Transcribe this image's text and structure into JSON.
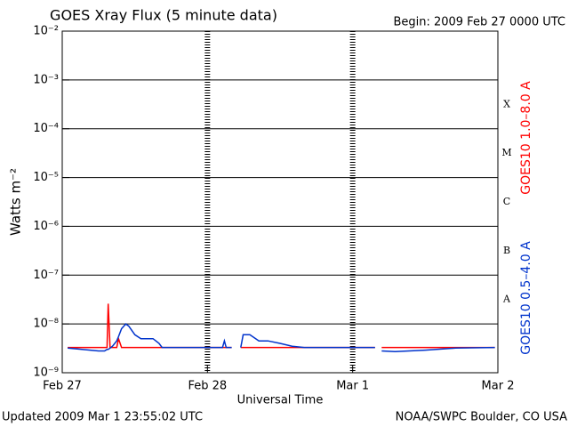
{
  "chart_data": {
    "type": "line",
    "title": "GOES Xray Flux (5 minute data)",
    "subtitle": "Begin:  2009 Feb 27 0000 UTC",
    "x_label": "Universal Time",
    "y_label": "Watts m⁻²",
    "footer_left": "Updated 2009 Mar  1 23:55:02 UTC",
    "footer_right": "NOAA/SWPC Boulder, CO USA",
    "log_scale": true,
    "grid": true,
    "legend": "right",
    "flare_classes": [
      "X",
      "M",
      "C",
      "B",
      "A"
    ],
    "xlim": [
      0,
      72
    ],
    "xticks": [
      {
        "value": 0,
        "label": "Feb 27"
      },
      {
        "value": 24,
        "label": "Feb 28"
      },
      {
        "value": 48,
        "label": "Mar 1"
      },
      {
        "value": 72,
        "label": "Mar 2"
      }
    ],
    "ylim": [
      1e-09,
      0.01
    ],
    "yticks": [
      {
        "value": 1e-09,
        "label": "10⁻⁹"
      },
      {
        "value": 1e-08,
        "label": "10⁻⁸"
      },
      {
        "value": 1e-07,
        "label": "10⁻⁷"
      },
      {
        "value": 1e-06,
        "label": "10⁻⁶"
      },
      {
        "value": 1e-05,
        "label": "10⁻⁵"
      },
      {
        "value": 0.0001,
        "label": "10⁻⁴"
      },
      {
        "value": 0.001,
        "label": "10⁻³"
      },
      {
        "value": 0.01,
        "label": "10⁻²"
      }
    ],
    "x": [
      0.9,
      6.0,
      7.0,
      7.4,
      7.6,
      7.9,
      8.3,
      9.0,
      9.3,
      9.8,
      10.5,
      11.0,
      12.0,
      13.0,
      15.0,
      16.0,
      16.5,
      17.5,
      26.5,
      26.8,
      27.1,
      27.4,
      28.0,
      28.5,
      29.5,
      29.9,
      31.0,
      32.5,
      34.0,
      36.0,
      38.0,
      40.0,
      45.0,
      51.7,
      52.2,
      52.8,
      55.0,
      60.0,
      65.0,
      71.5
    ],
    "series": [
      {
        "name": "GOES10 1.0–8.0 A",
        "color": "#ff0000",
        "values": [
          3.3e-09,
          3.3e-09,
          3.3e-09,
          3.3e-09,
          2.6e-08,
          3.3e-09,
          3.3e-09,
          3.3e-09,
          5e-09,
          3.3e-09,
          3.3e-09,
          3.3e-09,
          3.3e-09,
          3.3e-09,
          3.3e-09,
          3.3e-09,
          3.3e-09,
          3.3e-09,
          3.3e-09,
          3.3e-09,
          3.3e-09,
          3.3e-09,
          3.3e-09,
          null,
          3.3e-09,
          3.3e-09,
          3.3e-09,
          3.3e-09,
          3.3e-09,
          3.3e-09,
          3.3e-09,
          3.3e-09,
          3.3e-09,
          3.3e-09,
          null,
          3.3e-09,
          3.3e-09,
          3.3e-09,
          3.3e-09,
          3.3e-09
        ]
      },
      {
        "name": "GOES10 0.5–4.0 A",
        "color": "#0033cc",
        "values": [
          3.2e-09,
          2.8e-09,
          2.8e-09,
          3e-09,
          3e-09,
          3.2e-09,
          3.5e-09,
          4.5e-09,
          5.5e-09,
          8e-09,
          1e-08,
          9e-09,
          6e-09,
          5e-09,
          5e-09,
          4e-09,
          3.3e-09,
          3.3e-09,
          3.3e-09,
          4.5e-09,
          3.3e-09,
          3.3e-09,
          3.3e-09,
          null,
          3.3e-09,
          6e-09,
          6e-09,
          4.5e-09,
          4.5e-09,
          4e-09,
          3.5e-09,
          3.3e-09,
          3.3e-09,
          3.3e-09,
          null,
          2.8e-09,
          2.7e-09,
          2.9e-09,
          3.2e-09,
          3.3e-09
        ]
      }
    ]
  }
}
